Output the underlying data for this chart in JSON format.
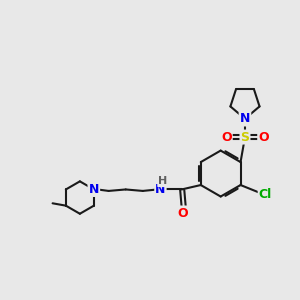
{
  "bg_color": "#e8e8e8",
  "bond_color": "#1a1a1a",
  "bond_width": 1.5,
  "atom_colors": {
    "N": "#0000ee",
    "O": "#ff0000",
    "S": "#cccc00",
    "Cl": "#00aa00",
    "H": "#606060",
    "C": "#1a1a1a"
  },
  "font_size": 8.5
}
